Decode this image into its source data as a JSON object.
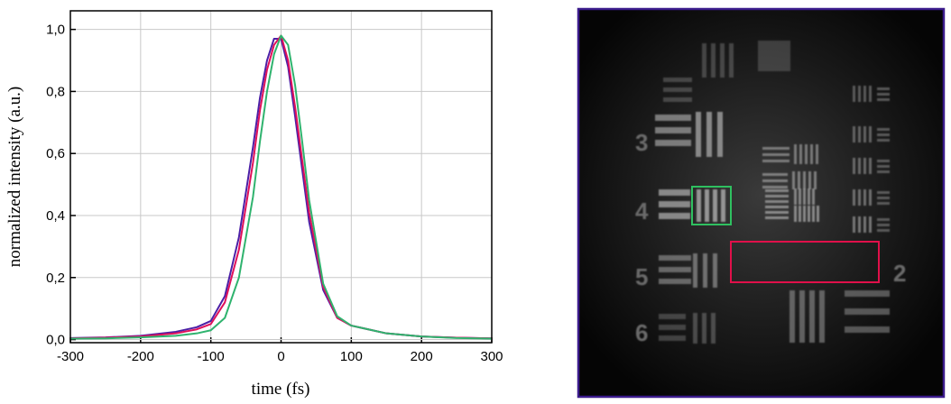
{
  "chart_data": {
    "type": "line",
    "x_label": "time (fs)",
    "y_label": "normalized intensity (a.u.)",
    "x": [
      -300,
      -250,
      -200,
      -150,
      -120,
      -100,
      -80,
      -60,
      -40,
      -30,
      -20,
      -10,
      0,
      10,
      20,
      30,
      40,
      60,
      80,
      100,
      120,
      150,
      200,
      250,
      300
    ],
    "series": [
      {
        "color": "#4b1fa6",
        "values": [
          0.005,
          0.007,
          0.012,
          0.025,
          0.04,
          0.06,
          0.14,
          0.33,
          0.62,
          0.78,
          0.9,
          0.97,
          0.97,
          0.88,
          0.72,
          0.55,
          0.38,
          0.16,
          0.07,
          0.045,
          0.035,
          0.02,
          0.01,
          0.006,
          0.004
        ]
      },
      {
        "color": "#e0105a",
        "values": [
          0.004,
          0.006,
          0.01,
          0.02,
          0.033,
          0.05,
          0.12,
          0.29,
          0.57,
          0.74,
          0.87,
          0.95,
          0.98,
          0.9,
          0.75,
          0.58,
          0.41,
          0.17,
          0.07,
          0.045,
          0.035,
          0.02,
          0.01,
          0.006,
          0.004
        ]
      },
      {
        "color": "#2fb36e",
        "values": [
          0.003,
          0.004,
          0.007,
          0.012,
          0.02,
          0.03,
          0.07,
          0.2,
          0.46,
          0.64,
          0.8,
          0.92,
          0.98,
          0.95,
          0.82,
          0.64,
          0.45,
          0.18,
          0.075,
          0.045,
          0.035,
          0.02,
          0.01,
          0.005,
          0.003
        ]
      }
    ],
    "xlim": [
      -300,
      300
    ],
    "ylim": [
      -0.01,
      1.06
    ],
    "xticks": [
      -300,
      -200,
      -100,
      0,
      100,
      200,
      300
    ],
    "yticks": [
      {
        "value": 0,
        "label": "0,0"
      },
      {
        "value": 0.2,
        "label": "0,2"
      },
      {
        "value": 0.4,
        "label": "0,4"
      },
      {
        "value": 0.6,
        "label": "0,6"
      },
      {
        "value": 0.8,
        "label": "0,8"
      },
      {
        "value": 1.0,
        "label": "1,0"
      }
    ],
    "grid": true
  },
  "image": {
    "labels": [
      "3",
      "4",
      "5",
      "6",
      "2"
    ]
  }
}
